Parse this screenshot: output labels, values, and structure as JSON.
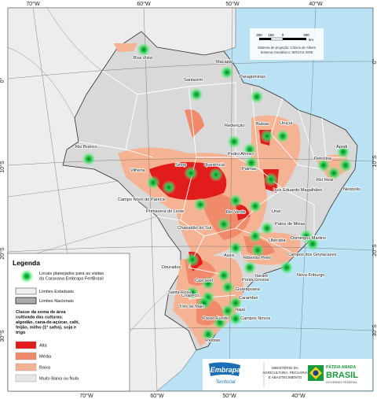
{
  "map": {
    "lon_labels": [
      "70°W",
      "60°W",
      "50°W",
      "40°W"
    ],
    "lat_labels": [
      "0°",
      "10°S",
      "20°S",
      "30°S"
    ],
    "scale": {
      "ticks": [
        "300",
        "150",
        "0",
        "300"
      ],
      "unit": "km",
      "note": [
        "Sistema de projeção: Cônica de Albers",
        "Sistema Geodésico: SIRGAS 2000"
      ]
    },
    "cities": [
      "Boa Vista",
      "Macapá",
      "Santarém",
      "Paragominas",
      "Redenção",
      "Balsas",
      "Uruçuí",
      "Rio Branco",
      "Pedro Afonso",
      "Palmas",
      "Apodi",
      "Petrolina",
      "Rio Real",
      "Neópolis",
      "Vilhena",
      "Sinop",
      "Querência",
      "Luís Eduardo Magalhães",
      "Campo Novo do Parecis",
      "Primavera do Leste",
      "Rio Verde",
      "Unaí",
      "Chapadão do Sul",
      "Patos de Minas",
      "Uberaba",
      "Domingos Martins",
      "Campos dos Goytacazes",
      "Dourados",
      "Assis",
      "Ribeirão Preto",
      "Nova Friburgo",
      "Itararé",
      "Ponta Grossa",
      "Cascavel",
      "Guarapuava",
      "Chapecó",
      "Carambeí",
      "Três de Maio",
      "Itajaí",
      "Passo Fundo",
      "Campos Novos",
      "Santa Rosa",
      "Pelotas"
    ]
  },
  "legend": {
    "title": "Legenda",
    "points": "Locais planejados para as visitas da Caravana Embrapa FertBrasil",
    "state_limits": "Limites Estaduais",
    "national_limits": "Limites Nacionais",
    "class_title": [
      "Classe da soma de área",
      "cultivada das culturas:",
      "algodão, cana-de-açúcar, café,",
      "feijão, milho (1ª safra), soja e",
      "trigo"
    ],
    "classes": [
      "Alta",
      "Média",
      "Baixa",
      "Muito Baixa ou Nula"
    ]
  },
  "footer": {
    "embrapa": "Embrapa",
    "unit": "Territorial",
    "ministry": [
      "MINISTÉRIO DA",
      "AGRICULTURA, PECUÁRIA",
      "E ABASTECIMENTO"
    ],
    "slogan": "PÁTRIA AMADA",
    "country": "BRASIL",
    "government": "GOVERNO FEDERAL"
  }
}
